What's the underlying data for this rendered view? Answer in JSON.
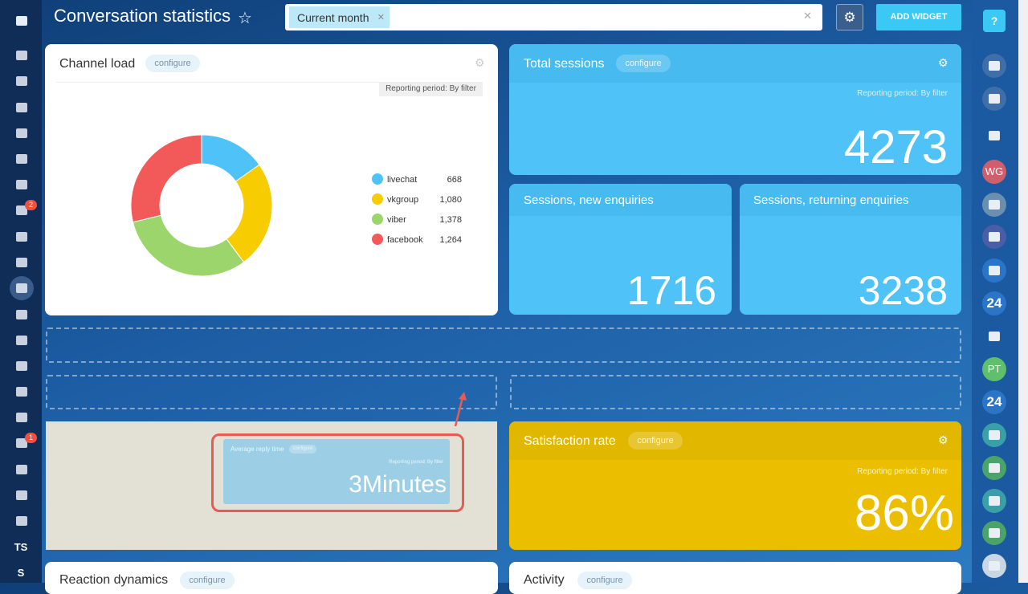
{
  "header": {
    "title": "Conversation statistics",
    "filter_chip": "Current month",
    "add_widget": "ADD WIDGET"
  },
  "left_sidebar": {
    "badges": [
      "2",
      "1"
    ],
    "labels": [
      "TS",
      "S"
    ]
  },
  "right_sidebar": {
    "help": "?",
    "avatars": [
      "WG",
      "PT"
    ],
    "apps": [
      "24",
      "24"
    ]
  },
  "widgets": {
    "channel_load": {
      "title": "Channel load",
      "configure": "configure",
      "period": "Reporting period: By filter",
      "chart_data": {
        "type": "donut",
        "categories": [
          "livechat",
          "vkgroup",
          "viber",
          "facebook"
        ],
        "values": [
          668,
          1080,
          1378,
          1264
        ],
        "value_labels": [
          "668",
          "1,080",
          "1,378",
          "1,264"
        ],
        "colors": [
          "#4fc3f7",
          "#f7cc00",
          "#9bd56b",
          "#f25a5a"
        ]
      }
    },
    "total_sessions": {
      "title": "Total sessions",
      "configure": "configure",
      "period": "Reporting period: By filter",
      "value": "4273"
    },
    "new_enquiries": {
      "title": "Sessions, new enquiries",
      "value": "1716"
    },
    "returning_enquiries": {
      "title": "Sessions, returning enquiries",
      "value": "3238"
    },
    "average_reply_time": {
      "title": "Average reply time",
      "configure": "configure",
      "period": "Reporting period: By filter",
      "value": "3Minutes"
    },
    "satisfaction_rate": {
      "title": "Satisfaction rate",
      "configure": "configure",
      "period": "Reporting period: By filter",
      "value": "86%"
    },
    "reaction_dynamics": {
      "title": "Reaction dynamics",
      "configure": "configure"
    },
    "activity": {
      "title": "Activity",
      "configure": "configure"
    }
  }
}
